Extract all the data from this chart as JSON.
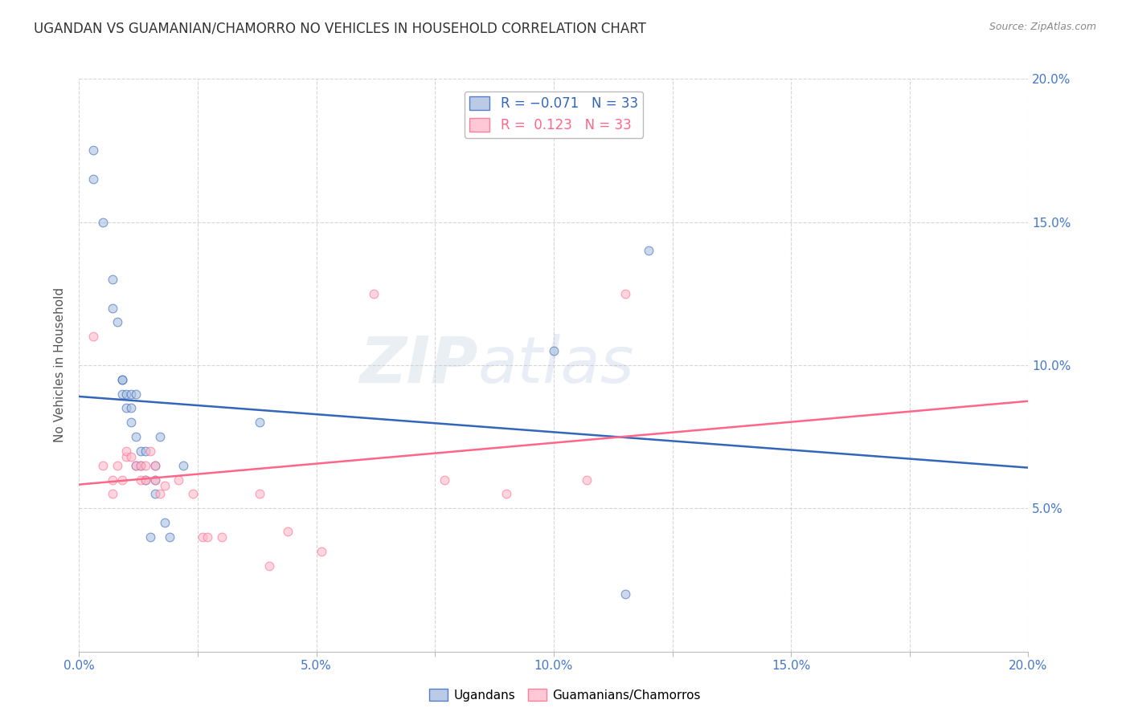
{
  "title": "UGANDAN VS GUAMANIAN/CHAMORRO NO VEHICLES IN HOUSEHOLD CORRELATION CHART",
  "source": "Source: ZipAtlas.com",
  "ylabel": "No Vehicles in Household",
  "watermark": "ZIPatlas",
  "xlim": [
    0.0,
    0.2
  ],
  "ylim": [
    0.0,
    0.2
  ],
  "xtick_vals": [
    0.0,
    0.025,
    0.05,
    0.075,
    0.1,
    0.125,
    0.15,
    0.175,
    0.2
  ],
  "ytick_vals": [
    0.05,
    0.1,
    0.15,
    0.2
  ],
  "right_ytick_vals": [
    0.05,
    0.1,
    0.15,
    0.2
  ],
  "ugandan_color": "#AABFDF",
  "guamanian_color": "#FFBBCC",
  "ugandan_line_color": "#3366BB",
  "guamanian_line_color": "#FF6688",
  "scatter_alpha": 0.6,
  "scatter_size": 60,
  "grid_color": "#CCCCCC",
  "background_color": "#FFFFFF",
  "title_fontsize": 12,
  "axis_label_fontsize": 11,
  "tick_fontsize": 11,
  "right_tick_color": "#4477CC",
  "bottom_tick_color": "#4477CC",
  "ugandan_x": [
    0.003,
    0.003,
    0.005,
    0.007,
    0.007,
    0.008,
    0.009,
    0.009,
    0.009,
    0.01,
    0.01,
    0.011,
    0.011,
    0.011,
    0.012,
    0.012,
    0.012,
    0.013,
    0.013,
    0.014,
    0.014,
    0.015,
    0.016,
    0.016,
    0.016,
    0.017,
    0.018,
    0.019,
    0.022,
    0.038,
    0.1,
    0.115,
    0.12
  ],
  "ugandan_y": [
    0.175,
    0.165,
    0.15,
    0.13,
    0.12,
    0.115,
    0.095,
    0.095,
    0.09,
    0.085,
    0.09,
    0.08,
    0.085,
    0.09,
    0.065,
    0.075,
    0.09,
    0.065,
    0.07,
    0.06,
    0.07,
    0.04,
    0.055,
    0.06,
    0.065,
    0.075,
    0.045,
    0.04,
    0.065,
    0.08,
    0.105,
    0.02,
    0.14
  ],
  "guamanian_x": [
    0.003,
    0.005,
    0.007,
    0.007,
    0.008,
    0.009,
    0.01,
    0.01,
    0.011,
    0.012,
    0.013,
    0.013,
    0.014,
    0.014,
    0.015,
    0.016,
    0.016,
    0.017,
    0.018,
    0.021,
    0.024,
    0.026,
    0.027,
    0.03,
    0.038,
    0.04,
    0.044,
    0.051,
    0.062,
    0.077,
    0.09,
    0.107,
    0.115
  ],
  "guamanian_y": [
    0.11,
    0.065,
    0.055,
    0.06,
    0.065,
    0.06,
    0.068,
    0.07,
    0.068,
    0.065,
    0.06,
    0.065,
    0.06,
    0.065,
    0.07,
    0.06,
    0.065,
    0.055,
    0.058,
    0.06,
    0.055,
    0.04,
    0.04,
    0.04,
    0.055,
    0.03,
    0.042,
    0.035,
    0.125,
    0.06,
    0.055,
    0.06,
    0.125
  ]
}
